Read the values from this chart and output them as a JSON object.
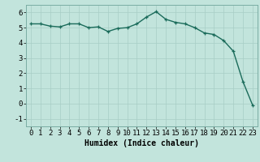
{
  "x": [
    0,
    1,
    2,
    3,
    4,
    5,
    6,
    7,
    8,
    9,
    10,
    11,
    12,
    13,
    14,
    15,
    16,
    17,
    18,
    19,
    20,
    21,
    22,
    23
  ],
  "y": [
    5.25,
    5.25,
    5.1,
    5.05,
    5.25,
    5.25,
    5.0,
    5.05,
    4.75,
    4.95,
    5.0,
    5.25,
    5.7,
    6.05,
    5.55,
    5.35,
    5.25,
    5.0,
    4.65,
    4.55,
    4.15,
    3.45,
    1.45,
    -0.1
  ],
  "line_color": "#1a6b5a",
  "marker": "+",
  "marker_size": 3,
  "marker_lw": 0.9,
  "bg_color": "#c2e4dc",
  "grid_color": "#a8cec6",
  "xlabel": "Humidex (Indice chaleur)",
  "xlim": [
    -0.5,
    23.5
  ],
  "ylim": [
    -1.5,
    6.5
  ],
  "yticks": [
    -1,
    0,
    1,
    2,
    3,
    4,
    5,
    6
  ],
  "xticks": [
    0,
    1,
    2,
    3,
    4,
    5,
    6,
    7,
    8,
    9,
    10,
    11,
    12,
    13,
    14,
    15,
    16,
    17,
    18,
    19,
    20,
    21,
    22,
    23
  ],
  "xlabel_fontsize": 7,
  "tick_fontsize": 6.5,
  "line_width": 1.0
}
